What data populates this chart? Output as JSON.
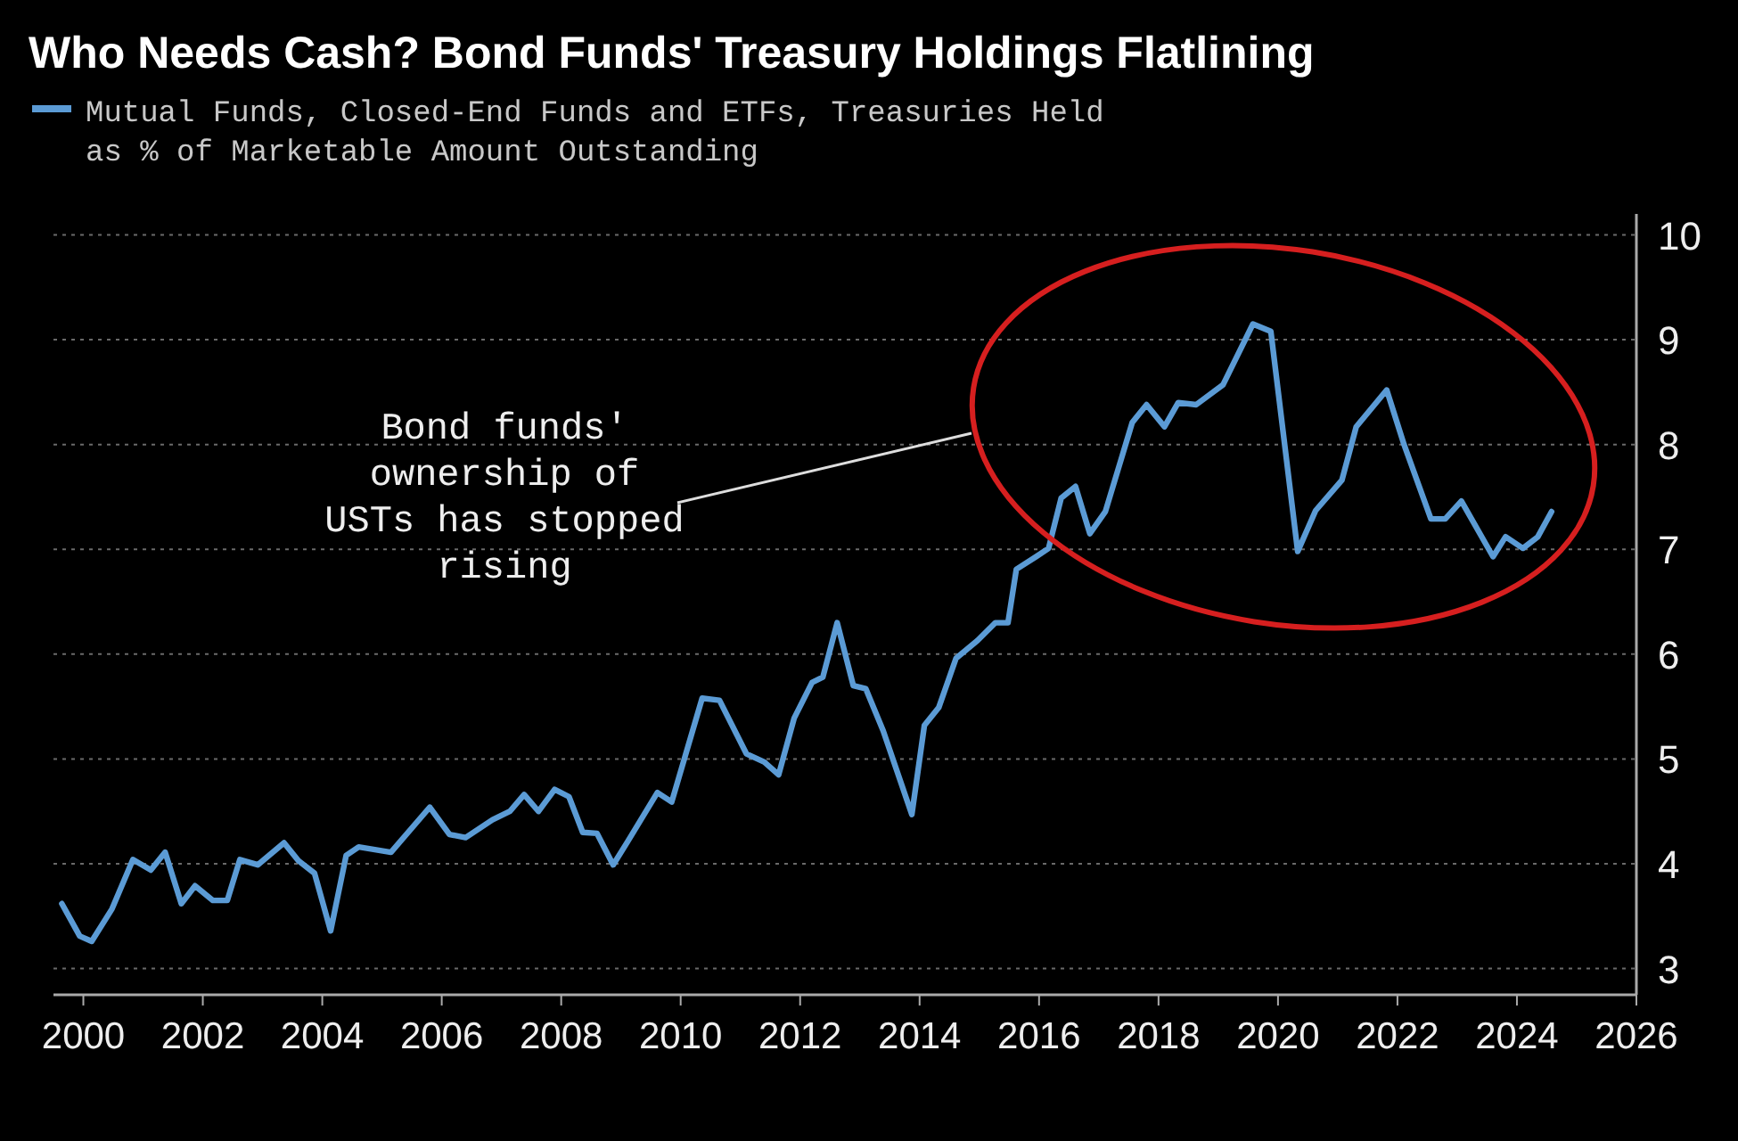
{
  "chart_data": {
    "type": "line",
    "title": "Who Needs Cash? Bond Funds' Treasury Holdings Flatlining",
    "xlim": [
      1999.5,
      2026
    ],
    "xticks": [
      2000,
      2002,
      2004,
      2006,
      2008,
      2010,
      2012,
      2014,
      2016,
      2018,
      2020,
      2022,
      2024,
      2026
    ],
    "ylim": [
      2.75,
      10.2
    ],
    "yticks": [
      3,
      4,
      5,
      6,
      7,
      8,
      9,
      10
    ],
    "grid": "y",
    "legend": "top left",
    "annotations": [
      "Bond funds' ownership of USTs has stopped rising"
    ],
    "series": [
      {
        "name": "Mutual Funds, Closed-End Funds and ETFs, Treasuries Held as % of Marketable Amount Outstanding",
        "color": "#5b9bd5",
        "x": [
          1999.64,
          1999.94,
          2000.14,
          2000.48,
          2000.83,
          2001.13,
          2001.37,
          2001.64,
          2001.87,
          2002.17,
          2002.41,
          2002.62,
          2002.92,
          2003.36,
          2003.6,
          2003.87,
          2004.14,
          2004.4,
          2004.61,
          2005.15,
          2005.8,
          2006.13,
          2006.4,
          2006.85,
          2007.14,
          2007.38,
          2007.62,
          2007.89,
          2008.13,
          2008.36,
          2008.6,
          2008.87,
          2009.11,
          2009.61,
          2009.85,
          2010.36,
          2010.65,
          2011.1,
          2011.4,
          2011.64,
          2011.9,
          2012.2,
          2012.38,
          2012.62,
          2012.89,
          2013.1,
          2013.39,
          2013.87,
          2014.08,
          2014.32,
          2014.61,
          2014.97,
          2015.27,
          2015.48,
          2015.62,
          2015.95,
          2016.16,
          2016.37,
          2016.61,
          2016.85,
          2017.11,
          2017.56,
          2017.8,
          2018.1,
          2018.33,
          2018.63,
          2019.08,
          2019.58,
          2019.88,
          2020.33,
          2020.63,
          2021.07,
          2021.31,
          2021.82,
          2022.11,
          2022.56,
          2022.8,
          2023.07,
          2023.6,
          2023.81,
          2024.1,
          2024.35,
          2024.58
        ],
        "values": [
          3.62,
          3.31,
          3.26,
          3.57,
          4.04,
          3.94,
          4.11,
          3.62,
          3.79,
          3.65,
          3.65,
          4.04,
          3.99,
          4.2,
          4.03,
          3.91,
          3.36,
          4.08,
          4.16,
          4.11,
          4.54,
          4.28,
          4.25,
          4.42,
          4.5,
          4.66,
          4.5,
          4.71,
          4.64,
          4.3,
          4.29,
          3.99,
          4.21,
          4.68,
          4.59,
          5.58,
          5.56,
          5.05,
          4.97,
          4.85,
          5.39,
          5.73,
          5.78,
          6.3,
          5.7,
          5.67,
          5.27,
          4.47,
          5.32,
          5.49,
          5.96,
          6.13,
          6.3,
          6.3,
          6.81,
          6.93,
          7.01,
          7.49,
          7.6,
          7.15,
          7.36,
          8.21,
          8.38,
          8.17,
          8.4,
          8.38,
          8.57,
          9.15,
          9.08,
          6.98,
          7.37,
          7.66,
          8.17,
          8.52,
          8.0,
          7.29,
          7.29,
          7.46,
          6.93,
          7.12,
          7.01,
          7.12,
          7.36
        ]
      }
    ]
  }
}
